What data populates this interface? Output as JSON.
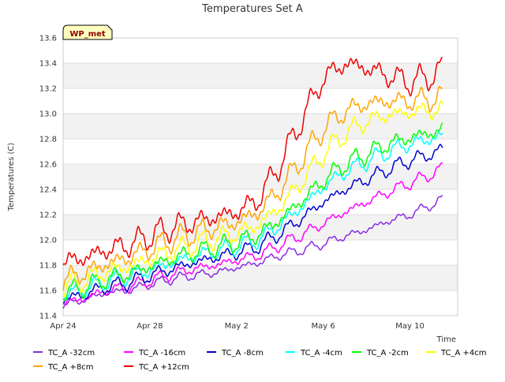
{
  "chart_data": {
    "type": "line",
    "title": "Temperatures Set A",
    "xlabel": "Time",
    "ylabel": "Temperatures (C)",
    "badge": "WP_met",
    "xlim": [
      0,
      18.2
    ],
    "ylim": [
      11.4,
      13.6
    ],
    "x_ticks": [
      {
        "x": 0,
        "label": "Apr 24"
      },
      {
        "x": 4,
        "label": "Apr 28"
      },
      {
        "x": 8,
        "label": "May 2"
      },
      {
        "x": 12,
        "label": "May 6"
      },
      {
        "x": 16,
        "label": "May 10"
      }
    ],
    "y_ticks": [
      "11.4",
      "11.6",
      "11.8",
      "12.0",
      "12.2",
      "12.4",
      "12.6",
      "12.8",
      "13.0",
      "13.2",
      "13.4",
      "13.6"
    ],
    "grid": true,
    "legend_position": "bottom",
    "series": [
      {
        "name": "TC_A -32cm",
        "color": "#8a2be2",
        "points": [
          [
            0,
            11.48
          ],
          [
            1,
            11.53
          ],
          [
            2,
            11.58
          ],
          [
            3,
            11.6
          ],
          [
            4,
            11.65
          ],
          [
            5,
            11.69
          ],
          [
            6,
            11.72
          ],
          [
            7,
            11.74
          ],
          [
            8,
            11.78
          ],
          [
            9,
            11.82
          ],
          [
            10,
            11.88
          ],
          [
            11,
            11.92
          ],
          [
            12,
            11.97
          ],
          [
            13,
            12.03
          ],
          [
            14,
            12.08
          ],
          [
            15,
            12.15
          ],
          [
            16,
            12.2
          ],
          [
            17,
            12.28
          ],
          [
            17.5,
            12.32
          ]
        ]
      },
      {
        "name": "TC_A -16cm",
        "color": "#ff00ff",
        "points": [
          [
            0,
            11.5
          ],
          [
            1,
            11.54
          ],
          [
            2,
            11.6
          ],
          [
            3,
            11.63
          ],
          [
            4,
            11.68
          ],
          [
            5,
            11.73
          ],
          [
            6,
            11.77
          ],
          [
            7,
            11.8
          ],
          [
            8,
            11.84
          ],
          [
            9,
            11.88
          ],
          [
            10,
            11.96
          ],
          [
            11,
            12.04
          ],
          [
            12,
            12.13
          ],
          [
            13,
            12.22
          ],
          [
            14,
            12.3
          ],
          [
            15,
            12.38
          ],
          [
            16,
            12.45
          ],
          [
            17,
            12.52
          ],
          [
            17.5,
            12.57
          ]
        ]
      },
      {
        "name": "TC_A -8cm",
        "color": "#0000cd",
        "points": [
          [
            0,
            11.53
          ],
          [
            1,
            11.57
          ],
          [
            2,
            11.63
          ],
          [
            3,
            11.66
          ],
          [
            4,
            11.72
          ],
          [
            5,
            11.77
          ],
          [
            6,
            11.82
          ],
          [
            7,
            11.86
          ],
          [
            8,
            11.9
          ],
          [
            9,
            11.95
          ],
          [
            10,
            12.05
          ],
          [
            11,
            12.17
          ],
          [
            12,
            12.3
          ],
          [
            13,
            12.4
          ],
          [
            14,
            12.48
          ],
          [
            15,
            12.56
          ],
          [
            16,
            12.63
          ],
          [
            17,
            12.68
          ],
          [
            17.5,
            12.72
          ]
        ]
      },
      {
        "name": "TC_A -4cm",
        "color": "#00ffff",
        "points": [
          [
            0,
            11.56
          ],
          [
            1,
            11.61
          ],
          [
            2,
            11.67
          ],
          [
            3,
            11.71
          ],
          [
            4,
            11.76
          ],
          [
            5,
            11.82
          ],
          [
            6,
            11.87
          ],
          [
            7,
            11.91
          ],
          [
            8,
            11.95
          ],
          [
            9,
            12.0
          ],
          [
            10,
            12.12
          ],
          [
            11,
            12.26
          ],
          [
            12,
            12.42
          ],
          [
            13,
            12.54
          ],
          [
            14,
            12.62
          ],
          [
            15,
            12.7
          ],
          [
            16,
            12.76
          ],
          [
            17,
            12.8
          ],
          [
            17.5,
            12.83
          ]
        ]
      },
      {
        "name": "TC_A -2cm",
        "color": "#00ff00",
        "points": [
          [
            0,
            11.58
          ],
          [
            1,
            11.63
          ],
          [
            2,
            11.69
          ],
          [
            3,
            11.73
          ],
          [
            4,
            11.79
          ],
          [
            5,
            11.85
          ],
          [
            6,
            11.9
          ],
          [
            7,
            11.94
          ],
          [
            8,
            11.98
          ],
          [
            9,
            12.04
          ],
          [
            10,
            12.16
          ],
          [
            11,
            12.31
          ],
          [
            12,
            12.47
          ],
          [
            13,
            12.6
          ],
          [
            14,
            12.68
          ],
          [
            15,
            12.76
          ],
          [
            16,
            12.81
          ],
          [
            17,
            12.85
          ],
          [
            17.5,
            12.87
          ]
        ]
      },
      {
        "name": "TC_A +4cm",
        "color": "#ffff00",
        "points": [
          [
            0,
            11.63
          ],
          [
            1,
            11.68
          ],
          [
            2,
            11.75
          ],
          [
            3,
            11.79
          ],
          [
            4,
            11.85
          ],
          [
            5,
            11.91
          ],
          [
            6,
            11.96
          ],
          [
            7,
            12.01
          ],
          [
            8,
            12.05
          ],
          [
            9,
            12.12
          ],
          [
            10,
            12.26
          ],
          [
            11,
            12.46
          ],
          [
            12,
            12.68
          ],
          [
            13,
            12.84
          ],
          [
            14,
            12.94
          ],
          [
            15,
            12.99
          ],
          [
            16,
            13.01
          ],
          [
            17,
            13.03
          ],
          [
            17.5,
            13.02
          ]
        ]
      },
      {
        "name": "TC_A +8cm",
        "color": "#ffa500",
        "points": [
          [
            0,
            11.68
          ],
          [
            1,
            11.74
          ],
          [
            2,
            11.81
          ],
          [
            3,
            11.86
          ],
          [
            4,
            11.93
          ],
          [
            5,
            12.0
          ],
          [
            6,
            12.05
          ],
          [
            7,
            12.1
          ],
          [
            8,
            12.14
          ],
          [
            9,
            12.22
          ],
          [
            10,
            12.4
          ],
          [
            11,
            12.64
          ],
          [
            12,
            12.88
          ],
          [
            13,
            13.02
          ],
          [
            14,
            13.08
          ],
          [
            15,
            13.1
          ],
          [
            16,
            13.1
          ],
          [
            17,
            13.12
          ],
          [
            17.5,
            13.13
          ]
        ]
      },
      {
        "name": "TC_A +12cm",
        "color": "#ee0000",
        "points": [
          [
            0,
            11.82
          ],
          [
            1,
            11.86
          ],
          [
            2,
            11.92
          ],
          [
            3,
            11.96
          ],
          [
            4,
            12.03
          ],
          [
            5,
            12.1
          ],
          [
            6,
            12.14
          ],
          [
            7,
            12.18
          ],
          [
            8,
            12.22
          ],
          [
            9,
            12.32
          ],
          [
            10,
            12.6
          ],
          [
            11,
            12.95
          ],
          [
            12,
            13.28
          ],
          [
            13,
            13.4
          ],
          [
            14,
            13.36
          ],
          [
            15,
            13.3
          ],
          [
            16,
            13.25
          ],
          [
            17,
            13.3
          ],
          [
            17.5,
            13.35
          ]
        ]
      }
    ]
  }
}
